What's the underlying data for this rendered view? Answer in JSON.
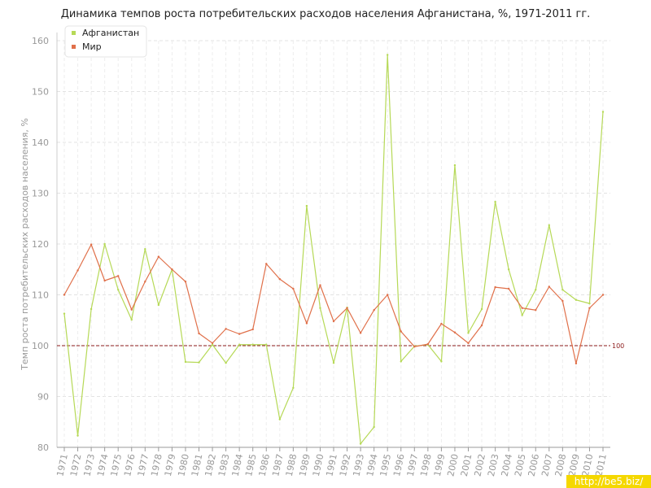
{
  "chart_data": {
    "type": "line",
    "title": "Динамика темпов роста потребительских расходов населения Афганистана, %, 1971-2011 гг.",
    "ylabel": "Темп роста потребительских расходов населения, %",
    "xlabel": "",
    "ylim": [
      80,
      160
    ],
    "yticks": [
      80,
      90,
      100,
      110,
      120,
      130,
      140,
      150,
      160
    ],
    "grid": true,
    "legend_position": "top-left",
    "reference_line": {
      "value": 100,
      "label": "100",
      "color": "#8b1a1a"
    },
    "categories": [
      "1971",
      "1972",
      "1973",
      "1974",
      "1975",
      "1976",
      "1977",
      "1978",
      "1979",
      "1980",
      "1981",
      "1982",
      "1983",
      "1984",
      "1985",
      "1986",
      "1987",
      "1988",
      "1989",
      "1990",
      "1991",
      "1992",
      "1993",
      "1994",
      "1995",
      "1996",
      "1997",
      "1998",
      "1999",
      "2000",
      "2001",
      "2002",
      "2003",
      "2004",
      "2005",
      "2006",
      "2007",
      "2008",
      "2009",
      "2010",
      "2011"
    ],
    "series": [
      {
        "name": "Афганистан",
        "color": "#b6d957",
        "values": [
          106.3,
          82.3,
          107.2,
          120.0,
          111.0,
          105.1,
          119.0,
          108.0,
          115.0,
          96.8,
          96.7,
          100.2,
          96.6,
          100.2,
          100.2,
          100.2,
          85.5,
          91.7,
          127.5,
          107.4,
          96.6,
          107.5,
          80.7,
          84.0,
          157.2,
          96.9,
          99.9,
          100.2,
          96.9,
          135.5,
          102.5,
          107.2,
          128.3,
          115.0,
          106.0,
          111.0,
          123.7,
          111.0,
          109.0,
          108.3,
          146.0
        ]
      },
      {
        "name": "Мир",
        "color": "#e0704a",
        "values": [
          110.0,
          114.8,
          119.9,
          112.8,
          113.7,
          107.1,
          112.6,
          117.5,
          115.0,
          112.6,
          102.4,
          100.5,
          103.3,
          102.3,
          103.2,
          116.1,
          113.1,
          111.2,
          104.4,
          111.9,
          104.8,
          107.4,
          102.5,
          107.0,
          110.0,
          102.8,
          99.8,
          100.3,
          104.3,
          102.6,
          100.5,
          104.0,
          111.5,
          111.2,
          107.4,
          107.0,
          111.6,
          108.8,
          96.5,
          107.4,
          110.0
        ]
      }
    ]
  },
  "watermark": "http://be5.biz/"
}
